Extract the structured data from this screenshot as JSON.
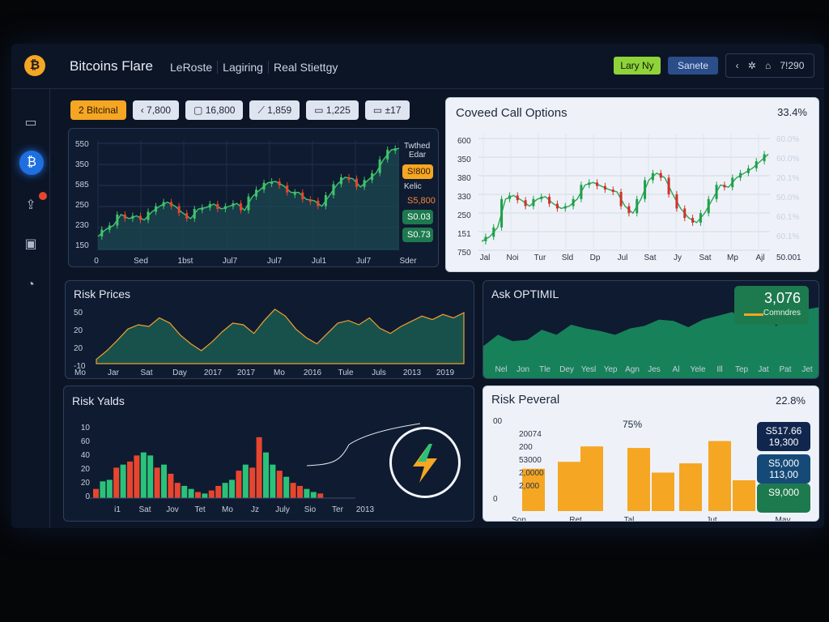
{
  "app": {
    "logo_glyph": "₿",
    "title": "Bitcoins Flare"
  },
  "nav": [
    "LeRoste",
    "Lagiring",
    "Real Stiettgy"
  ],
  "header_buttons": {
    "primary": "Lary Ny",
    "secondary": "Sanete"
  },
  "header_right": {
    "icons": [
      "‹",
      "✲",
      "⌂"
    ],
    "text": "7!290"
  },
  "sidebar": {
    "icons": [
      "▭",
      "₿",
      "⇪",
      "▣",
      "◔"
    ],
    "active_index": 1
  },
  "chips": [
    {
      "text": "2   Bitcinal",
      "style": "orange"
    },
    {
      "text": "‹ 7,800"
    },
    {
      "text": "▢ 16,800"
    },
    {
      "text": "⟋ 1,859"
    },
    {
      "text": "▭ 1,225"
    },
    {
      "text": "▭ ±17"
    }
  ],
  "panels": {
    "main_chart": {
      "y_labels": [
        "550",
        "350",
        "585",
        "250",
        "230",
        "150"
      ],
      "x_labels": [
        "0",
        "Sed",
        "1bst",
        "Jul7",
        "Jul7",
        "Jul1",
        "Jul7",
        "Sder"
      ],
      "side_text": [
        "Twthed",
        "Edar"
      ],
      "tags": [
        {
          "text": "S!800",
          "color": "#f5a623",
          "text_color": "#2a1800"
        },
        {
          "text": "S5,800",
          "color": "transparent",
          "text_color": "#f08a3a"
        },
        {
          "text": "S0.03",
          "color": "#1d7a4e",
          "text_color": "#ffffff"
        },
        {
          "text": "S0.73",
          "color": "#1d7a4e",
          "text_color": "#ffffff"
        }
      ],
      "kelic_label": "Kelic"
    },
    "covered_call": {
      "title": "Coveed Call Options",
      "stat": "33.4%",
      "y_labels": [
        "600",
        "350",
        "380",
        "330",
        "250",
        "151",
        "750"
      ],
      "x_labels": [
        "Jal",
        "Noi",
        "Tur",
        "Sld",
        "Dp",
        "Jul",
        "Sat",
        "Jy",
        "Sat",
        "Mp",
        "Ajl"
      ],
      "right_values": [
        "60.0%",
        "60.0%",
        "20.1%",
        "50.0%",
        "60.1%",
        "60.1%"
      ],
      "right_value_colors": [
        "#1d2638",
        "#1d2638",
        "#d0312d",
        "#d0312d",
        "#d0312d",
        "#d0312d"
      ],
      "bottom_right": "50.001"
    },
    "risk_prices": {
      "title": "Risk Prices",
      "y_labels": [
        "50",
        "20",
        "20",
        "-10"
      ],
      "x_labels": [
        "Mo",
        "Jar",
        "Sat",
        "Day",
        "2017",
        "2017",
        "Mo",
        "2016",
        "Tule",
        "Juls",
        "2013",
        "2019"
      ]
    },
    "ask_optimal": {
      "title": "Ask OPTIMIL",
      "callout_value": "3,076",
      "callout_label": "Comndres",
      "x_labels": [
        "Nel",
        "Jon",
        "Tle",
        "Dey",
        "Yesl",
        "Yep",
        "Agn",
        "Jes",
        "Al",
        "Yele",
        "Ill",
        "Tep",
        "Jat",
        "Pat",
        "Jet"
      ]
    },
    "risk_yields": {
      "title": "Risk Yalds",
      "y_labels": [
        "10",
        "60",
        "40",
        "20",
        "20",
        "0"
      ],
      "x_labels": [
        "i1",
        "Sat",
        "Jov",
        "Tet",
        "Mo",
        "Jz",
        "July",
        "Sio",
        "Ter",
        "2013"
      ]
    },
    "risk_peveral": {
      "title": "Risk Peveral",
      "stat": "22.8%",
      "y_labels": [
        "00",
        "20074",
        "200",
        "53000",
        "2,0000",
        "2,000",
        "0"
      ],
      "pct_label": "75%",
      "x_labels": [
        "Son",
        "Ret",
        "Tal",
        "Jut",
        "May"
      ],
      "boxes": [
        {
          "lines": [
            "S517.66",
            "19,300"
          ],
          "color": "#10264d"
        },
        {
          "lines": [
            "S5,000",
            "113,00"
          ],
          "color": "#154a78"
        },
        {
          "lines": [
            "S9,000"
          ],
          "color": "#1d7a4e"
        }
      ]
    }
  },
  "chart_data": [
    {
      "type": "line",
      "x": [
        0,
        1,
        2,
        3,
        4,
        5,
        6,
        7,
        8,
        9,
        10,
        11,
        12,
        13,
        14,
        15,
        16,
        17,
        18,
        19,
        20,
        21,
        22,
        23,
        24,
        25,
        26,
        27,
        28,
        29,
        30,
        31,
        32,
        33,
        34,
        35,
        36,
        37,
        38,
        39
      ],
      "series": [
        {
          "values": [
            150,
            175,
            190,
            230,
            215,
            225,
            210,
            240,
            260,
            275,
            260,
            235,
            215,
            250,
            255,
            268,
            250,
            260,
            270,
            245,
            295,
            320,
            345,
            350,
            335,
            310,
            310,
            285,
            280,
            260,
            300,
            340,
            365,
            360,
            330,
            355,
            380,
            430,
            465,
            470
          ]
        }
      ],
      "ylim": [
        100,
        500
      ]
    },
    {
      "type": "line",
      "series": [
        {
          "values": [
            151,
            170,
            210,
            330,
            345,
            325,
            300,
            330,
            340,
            310,
            290,
            300,
            330,
            390,
            400,
            385,
            370,
            360,
            300,
            270,
            330,
            410,
            440,
            420,
            350,
            290,
            250,
            230,
            270,
            330,
            390,
            380,
            420,
            440,
            460,
            490,
            520
          ]
        }
      ],
      "ylim": [
        120,
        600
      ]
    },
    {
      "type": "area",
      "series": [
        {
          "values": [
            -10,
            0,
            12,
            25,
            30,
            28,
            38,
            32,
            18,
            8,
            0,
            10,
            22,
            32,
            30,
            20,
            35,
            48,
            40,
            25,
            15,
            8,
            20,
            32,
            35,
            30,
            38,
            26,
            20,
            28,
            34,
            40,
            36,
            42,
            38,
            44
          ]
        }
      ],
      "ylim": [
        -15,
        60
      ]
    },
    {
      "type": "area",
      "series": [
        {
          "values": [
            20,
            38,
            28,
            30,
            46,
            38,
            54,
            48,
            44,
            38,
            48,
            52,
            62,
            60,
            50,
            62,
            68,
            74,
            58,
            72,
            52,
            66,
            78,
            82
          ]
        }
      ],
      "ylim": [
        0,
        100
      ]
    },
    {
      "type": "bar",
      "series": [
        {
          "values": [
            6,
            11,
            12,
            20,
            22,
            24,
            28,
            30,
            28,
            20,
            22,
            16,
            10,
            8,
            6,
            4,
            3,
            5,
            8,
            10,
            12,
            18,
            22,
            20,
            40,
            30,
            22,
            18,
            14,
            10,
            8,
            6,
            4,
            3
          ]
        }
      ],
      "colors_pattern": [
        "#e8452f",
        "#2ac27a",
        "#2ac27a",
        "#e8452f",
        "#2ac27a",
        "#e8452f"
      ],
      "ylim": [
        0,
        50
      ]
    },
    {
      "type": "bar",
      "categories": [
        "b1",
        "b2",
        "b3",
        "b4",
        "b5",
        "b6",
        "b7",
        "b8",
        "b9"
      ],
      "values": [
        55,
        64,
        84,
        82,
        50,
        62,
        91,
        40,
        40
      ],
      "ylim": [
        0,
        120
      ]
    }
  ]
}
